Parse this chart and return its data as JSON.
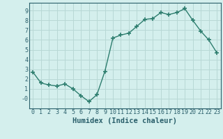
{
  "x": [
    0,
    1,
    2,
    3,
    4,
    5,
    6,
    7,
    8,
    9,
    10,
    11,
    12,
    13,
    14,
    15,
    16,
    17,
    18,
    19,
    20,
    21,
    22,
    23
  ],
  "y": [
    2.7,
    1.6,
    1.4,
    1.3,
    1.5,
    1.0,
    0.3,
    -0.3,
    0.4,
    2.8,
    6.2,
    6.5,
    6.7,
    7.4,
    8.1,
    8.2,
    8.8,
    8.6,
    8.8,
    9.2,
    8.0,
    6.9,
    6.0,
    4.7
  ],
  "line_color": "#2d7d6e",
  "marker": "+",
  "marker_size": 4.0,
  "line_width": 1.0,
  "bg_color": "#d4efed",
  "grid_color": "#b8d8d5",
  "xlabel": "Humidex (Indice chaleur)",
  "xlim": [
    -0.5,
    23.5
  ],
  "ylim": [
    -1.0,
    9.8
  ],
  "yticks": [
    0,
    1,
    2,
    3,
    4,
    5,
    6,
    7,
    8,
    9
  ],
  "xticks": [
    0,
    1,
    2,
    3,
    4,
    5,
    6,
    7,
    8,
    9,
    10,
    11,
    12,
    13,
    14,
    15,
    16,
    17,
    18,
    19,
    20,
    21,
    22,
    23
  ],
  "tick_color": "#2a5f6b",
  "xlabel_color": "#2a5f6b",
  "xlabel_fontsize": 7.5,
  "tick_fontsize": 6.0,
  "ytick_labels": [
    "-0",
    "1",
    "2",
    "3",
    "4",
    "5",
    "6",
    "7",
    "8",
    "9"
  ]
}
